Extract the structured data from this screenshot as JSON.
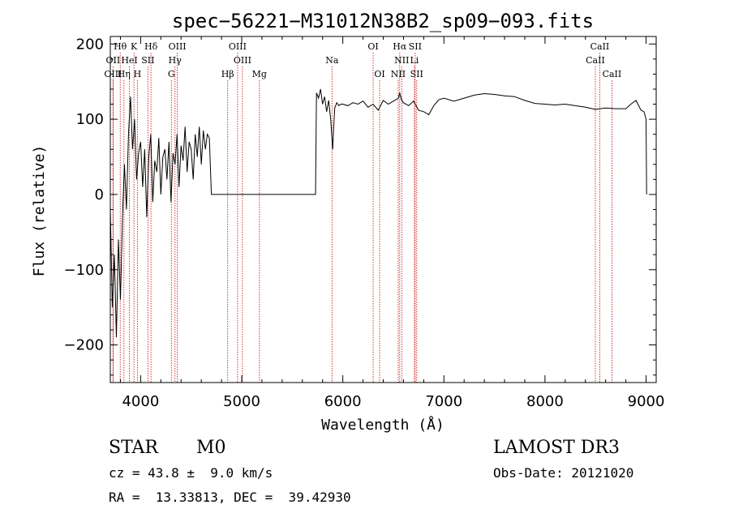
{
  "chart_data": {
    "type": "line",
    "title": "spec−56221−M31012N38B2_sp09−093.fits",
    "xlabel": "Wavelength (Å)",
    "ylabel": "Flux (relative)",
    "xlim": [
      3700,
      9100
    ],
    "ylim": [
      -250,
      210
    ],
    "xticks": [
      4000,
      5000,
      6000,
      7000,
      8000,
      9000
    ],
    "xtick_labels": [
      "4000",
      "5000",
      "6000",
      "7000",
      "8000",
      "9000"
    ],
    "yticks": [
      -200,
      -100,
      0,
      100,
      200
    ],
    "ytick_labels": [
      "−200",
      "−100",
      "0",
      "100",
      "200"
    ],
    "grid": false,
    "series": [
      {
        "x": [
          3700,
          3720,
          3740,
          3760,
          3780,
          3800,
          3820,
          3840,
          3860,
          3880,
          3900,
          3920,
          3940,
          3960,
          3980,
          4000,
          4020,
          4040,
          4060,
          4080,
          4100,
          4120,
          4140,
          4160,
          4180,
          4200,
          4220,
          4240,
          4260,
          4280,
          4300,
          4320,
          4340,
          4360,
          4380,
          4400,
          4420,
          4440,
          4460,
          4480,
          4500,
          4520,
          4540,
          4560,
          4580,
          4600,
          4620,
          4640,
          4660,
          4680,
          4700,
          5000,
          5500,
          5730,
          5740,
          5760,
          5780,
          5800,
          5820,
          5840,
          5860,
          5880,
          5900,
          5910,
          5920,
          5940,
          5960,
          5980,
          6000,
          6050,
          6100,
          6150,
          6200,
          6250,
          6300,
          6350,
          6400,
          6450,
          6500,
          6550,
          6563,
          6580,
          6600,
          6650,
          6700,
          6750,
          6800,
          6850,
          6900,
          6950,
          7000,
          7100,
          7200,
          7300,
          7400,
          7500,
          7600,
          7700,
          7800,
          7900,
          8000,
          8100,
          8200,
          8300,
          8400,
          8500,
          8600,
          8700,
          8800,
          8850,
          8900,
          8950,
          8980,
          9000,
          9005
        ],
        "y": [
          -20,
          -150,
          -80,
          -190,
          -60,
          -140,
          -30,
          40,
          -20,
          80,
          130,
          60,
          100,
          20,
          55,
          70,
          10,
          60,
          -30,
          50,
          80,
          -10,
          45,
          30,
          75,
          0,
          50,
          60,
          20,
          70,
          -10,
          55,
          40,
          80,
          10,
          65,
          45,
          90,
          30,
          70,
          60,
          20,
          80,
          50,
          90,
          40,
          85,
          60,
          80,
          75,
          0,
          0,
          0,
          0,
          135,
          128,
          140,
          120,
          130,
          110,
          125,
          100,
          60,
          90,
          115,
          122,
          118,
          120,
          120,
          118,
          122,
          120,
          124,
          116,
          120,
          112,
          125,
          120,
          124,
          128,
          135,
          126,
          122,
          118,
          124,
          112,
          110,
          106,
          118,
          126,
          128,
          124,
          128,
          132,
          134,
          133,
          131,
          130,
          125,
          121,
          120,
          119,
          120,
          118,
          116,
          113,
          115,
          114,
          114,
          120,
          125,
          112,
          110,
          100,
          0
        ],
        "color": "#000000"
      }
    ],
    "lines": [
      {
        "label": "Hθ",
        "x": 3798,
        "row": 0
      },
      {
        "label": "K",
        "x": 3934,
        "row": 0
      },
      {
        "label": "Hδ",
        "x": 4102,
        "row": 0
      },
      {
        "label": "OIII",
        "x": 4363,
        "row": 0
      },
      {
        "label": "OIII",
        "x": 4959,
        "row": 0
      },
      {
        "label": "OI",
        "x": 6300,
        "row": 0
      },
      {
        "label": "Hα",
        "x": 6563,
        "row": 0
      },
      {
        "label": "SII",
        "x": 6716,
        "row": 0
      },
      {
        "label": "CaII",
        "x": 8542,
        "row": 0
      },
      {
        "label": "OII",
        "x": 3727,
        "row": 1
      },
      {
        "label": "HeI",
        "x": 3889,
        "row": 1
      },
      {
        "label": "SII",
        "x": 4072,
        "row": 1
      },
      {
        "label": "Hγ",
        "x": 4340,
        "row": 1
      },
      {
        "label": "OIII",
        "x": 5007,
        "row": 1
      },
      {
        "label": "Na",
        "x": 5893,
        "row": 1
      },
      {
        "label": "NII",
        "x": 6583,
        "row": 1
      },
      {
        "label": "Li",
        "x": 6708,
        "row": 1
      },
      {
        "label": "CaII",
        "x": 8498,
        "row": 1
      },
      {
        "label": "OIII",
        "x": 3727,
        "row": 2
      },
      {
        "label": "Hη",
        "x": 3835,
        "row": 2
      },
      {
        "label": "H",
        "x": 3968,
        "row": 2
      },
      {
        "label": "G",
        "x": 4304,
        "row": 2
      },
      {
        "label": "Hβ",
        "x": 4861,
        "row": 2
      },
      {
        "label": "Mg",
        "x": 5175,
        "row": 2
      },
      {
        "label": "OI",
        "x": 6364,
        "row": 2
      },
      {
        "label": "NII",
        "x": 6548,
        "row": 2
      },
      {
        "label": "SII",
        "x": 6731,
        "row": 2
      },
      {
        "label": "CaII",
        "x": 8662,
        "row": 2
      }
    ],
    "line_color": "#cc0000"
  },
  "info": {
    "class_label": "STAR",
    "subclass": "M0",
    "survey": "LAMOST DR3",
    "redshift": "cz = 43.8 ±  9.0 km/s",
    "obs_date": "Obs-Date: 20121020",
    "coords": "RA =  13.33813, DEC =  39.42930"
  }
}
